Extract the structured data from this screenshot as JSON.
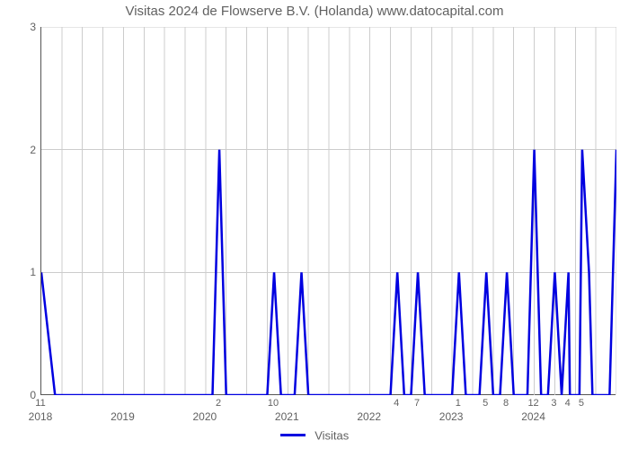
{
  "chart": {
    "type": "line",
    "title": "Visitas 2024 de Flowserve B.V. (Holanda) www.datocapital.com",
    "title_fontsize": 15,
    "title_color": "#616161",
    "background_color": "#ffffff",
    "grid_color": "#cccccc",
    "axis_color": "#555555",
    "tick_label_color": "#616161",
    "tick_label_fontsize": 12,
    "data_label_fontsize": 11,
    "line_color": "#0000e0",
    "line_width": 2.5,
    "xlim": [
      0,
      84
    ],
    "ylim": [
      0,
      3
    ],
    "ytick_step": 1,
    "x_major_ticks": [
      {
        "pos": 0,
        "label": "2018"
      },
      {
        "pos": 12,
        "label": "2019"
      },
      {
        "pos": 24,
        "label": "2020"
      },
      {
        "pos": 36,
        "label": "2021"
      },
      {
        "pos": 48,
        "label": "2022"
      },
      {
        "pos": 60,
        "label": "2023"
      },
      {
        "pos": 72,
        "label": "2024"
      }
    ],
    "x_minor_ticks_every": 3,
    "data_labels": [
      {
        "x": 0,
        "text": "11"
      },
      {
        "x": 26,
        "text": "2"
      },
      {
        "x": 34,
        "text": "10"
      },
      {
        "x": 52,
        "text": "4"
      },
      {
        "x": 55,
        "text": "7"
      },
      {
        "x": 61,
        "text": "1"
      },
      {
        "x": 65,
        "text": "5"
      },
      {
        "x": 68,
        "text": "8"
      },
      {
        "x": 72,
        "text": "12"
      },
      {
        "x": 75,
        "text": "3"
      },
      {
        "x": 77,
        "text": "4"
      },
      {
        "x": 79,
        "text": "5"
      }
    ],
    "series": {
      "name": "Visitas",
      "points": [
        [
          0,
          1
        ],
        [
          2,
          0
        ],
        [
          25,
          0
        ],
        [
          26,
          2
        ],
        [
          27,
          0
        ],
        [
          33,
          0
        ],
        [
          34,
          1
        ],
        [
          35,
          0
        ],
        [
          37,
          0
        ],
        [
          38,
          1
        ],
        [
          39,
          0
        ],
        [
          51,
          0
        ],
        [
          52,
          1
        ],
        [
          53,
          0
        ],
        [
          54,
          0
        ],
        [
          55,
          1
        ],
        [
          56,
          0
        ],
        [
          60,
          0
        ],
        [
          61,
          1
        ],
        [
          62,
          0
        ],
        [
          64,
          0
        ],
        [
          65,
          1
        ],
        [
          66,
          0
        ],
        [
          67,
          0
        ],
        [
          68,
          1
        ],
        [
          69,
          0
        ],
        [
          71,
          0
        ],
        [
          72,
          2
        ],
        [
          73,
          0
        ],
        [
          74,
          0
        ],
        [
          75,
          1
        ],
        [
          76,
          0
        ],
        [
          77,
          1
        ],
        [
          77.2,
          0
        ],
        [
          78.6,
          0
        ],
        [
          79,
          2
        ],
        [
          80,
          1
        ],
        [
          80.5,
          0
        ],
        [
          83,
          0
        ],
        [
          84,
          2
        ]
      ]
    },
    "legend": {
      "label": "Visitas",
      "color": "#0000e0"
    }
  }
}
